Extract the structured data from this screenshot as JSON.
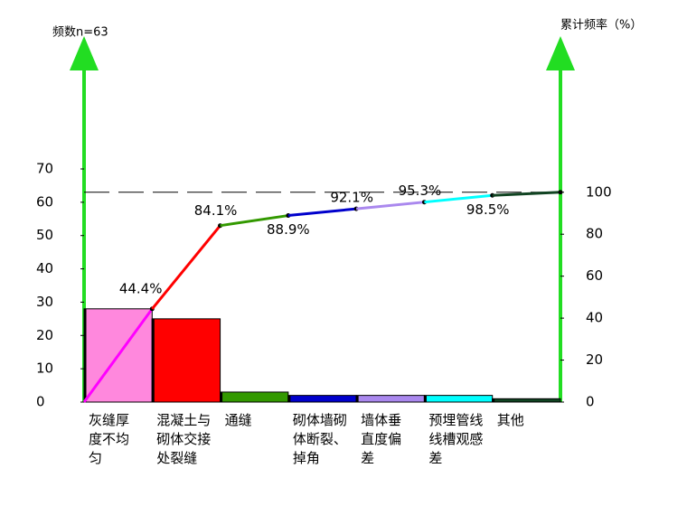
{
  "chart_data": {
    "type": "pareto",
    "ylabel": "频数n=63",
    "y2label": "累计频率（%）",
    "categories": [
      "灰缝厚度不均匀",
      "混凝土与砌体交接处裂缝",
      "通缝",
      "砌体墙砌体断裂、掉角",
      "墙体垂直度偏差",
      "预埋管线线槽观感差",
      "其他"
    ],
    "values": [
      28,
      25,
      3,
      2,
      2,
      2,
      1
    ],
    "colors": [
      "#ff88dd",
      "#ff0000",
      "#339900",
      "#0000cc",
      "#aa88ee",
      "#00ffff",
      "#114422"
    ],
    "cumulative": {
      "values": [
        44.4,
        84.1,
        88.9,
        92.1,
        95.3,
        98.5,
        100
      ],
      "value_labels": [
        "44.4%",
        "84.1%",
        "88.9%",
        "92.1%",
        "95.3%",
        "98.5%",
        null
      ],
      "colors": [
        "#ff00ff",
        "#ff0000",
        "#339900",
        "#0000cc",
        "#aa88ee",
        "#00ffff",
        "#114422"
      ],
      "axis": "y2"
    },
    "reference_line": 100,
    "ylim": [
      0,
      70
    ],
    "yticks": [
      0,
      10,
      20,
      30,
      40,
      50,
      60,
      70
    ],
    "y2lim": [
      0,
      111.1
    ],
    "y2ticks": [
      0,
      20,
      40,
      60,
      80,
      100
    ],
    "axis_color": "#22dd22"
  }
}
